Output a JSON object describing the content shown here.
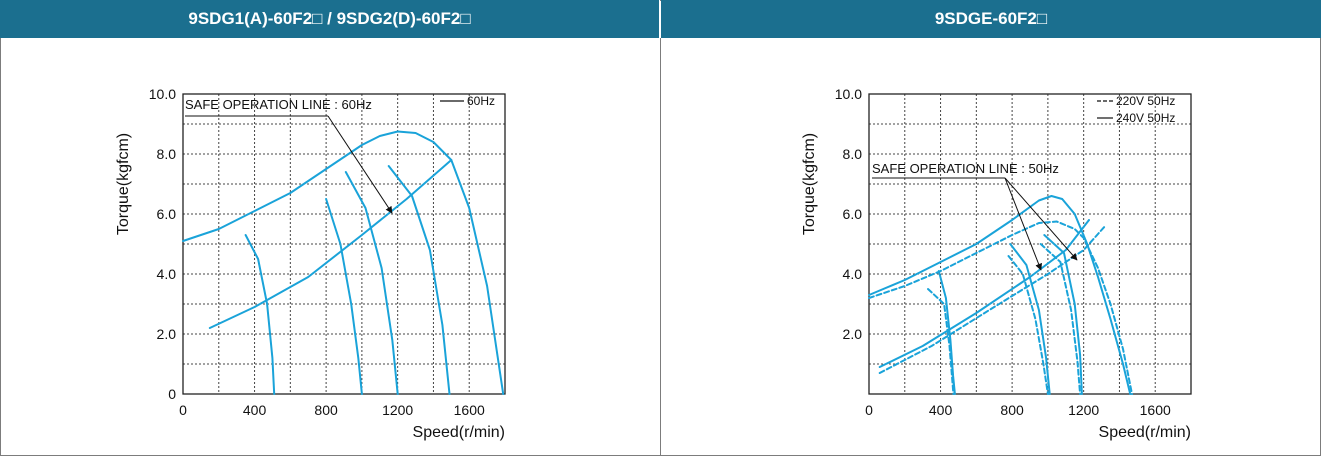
{
  "headers": {
    "left": "9SDG1(A)-60F2□ / 9SDG2(D)-60F2□",
    "right": "9SDGE-60F2□"
  },
  "colors": {
    "header_bg": "#1b6f8f",
    "curve": "#1aa3d9",
    "grid": "#444444"
  },
  "chart_data": [
    {
      "type": "line",
      "title": "9SDG1(A)-60F2□ / 9SDG2(D)-60F2□",
      "xlabel": "Speed(r/min)",
      "ylabel": "Torque(kgfcm)",
      "xlim": [
        0,
        1800
      ],
      "ylim": [
        0,
        10
      ],
      "xticks": [
        "0",
        "400",
        "800",
        "1200",
        "1600"
      ],
      "yticks": [
        "0",
        "2.0",
        "4.0",
        "6.0",
        "8.0",
        "10.0"
      ],
      "grid": true,
      "legend": [
        {
          "label": "60Hz",
          "style": "solid"
        }
      ],
      "annotation": "SAFE OPERATION LINE : 60Hz",
      "series": [
        {
          "style": "solid",
          "x": [
            0,
            200,
            400,
            600,
            800,
            1000,
            1100,
            1200,
            1300,
            1400,
            1500,
            1600,
            1700,
            1790
          ],
          "y": [
            5.1,
            5.5,
            6.1,
            6.7,
            7.5,
            8.3,
            8.6,
            8.75,
            8.7,
            8.4,
            7.8,
            6.2,
            3.6,
            0
          ]
        },
        {
          "style": "solid",
          "x": [
            350,
            420,
            470,
            500,
            510
          ],
          "y": [
            5.3,
            4.5,
            3.0,
            1.2,
            0
          ]
        },
        {
          "style": "solid",
          "x": [
            800,
            880,
            940,
            980,
            1000
          ],
          "y": [
            6.5,
            5.0,
            3.0,
            1.2,
            0
          ]
        },
        {
          "style": "solid",
          "x": [
            910,
            1020,
            1110,
            1170,
            1200
          ],
          "y": [
            7.4,
            6.2,
            4.2,
            1.8,
            0
          ]
        },
        {
          "style": "solid",
          "x": [
            1150,
            1280,
            1380,
            1450,
            1490
          ],
          "y": [
            7.6,
            6.6,
            4.8,
            2.3,
            0
          ]
        },
        {
          "style": "solid",
          "x": [
            150,
            400,
            700,
            1000,
            1250,
            1500
          ],
          "y": [
            2.2,
            2.9,
            3.9,
            5.3,
            6.5,
            7.8
          ]
        }
      ]
    },
    {
      "type": "line",
      "title": "9SDGE-60F2□",
      "xlabel": "Speed(r/min)",
      "ylabel": "Torque(kgfcm)",
      "xlim": [
        0,
        1800
      ],
      "ylim": [
        0,
        10
      ],
      "xticks": [
        "0",
        "400",
        "800",
        "1200",
        "1600"
      ],
      "yticks": [
        "2.0",
        "4.0",
        "6.0",
        "8.0",
        "10.0"
      ],
      "grid": true,
      "legend": [
        {
          "label": "220V 50Hz",
          "style": "dashed"
        },
        {
          "label": "240V 50Hz",
          "style": "solid"
        }
      ],
      "annotation": "SAFE OPERATION LINE : 50Hz",
      "series": [
        {
          "style": "solid",
          "x": [
            0,
            200,
            400,
            600,
            800,
            950,
            1020,
            1080,
            1150,
            1220,
            1280,
            1350,
            1420,
            1460
          ],
          "y": [
            3.3,
            3.8,
            4.4,
            5.0,
            5.8,
            6.45,
            6.6,
            6.5,
            6.0,
            5.0,
            3.9,
            2.5,
            1.0,
            0
          ]
        },
        {
          "style": "dashed",
          "x": [
            0,
            200,
            400,
            600,
            800,
            950,
            1050,
            1150,
            1200,
            1280,
            1350,
            1420,
            1470
          ],
          "y": [
            3.2,
            3.6,
            4.1,
            4.7,
            5.3,
            5.7,
            5.75,
            5.5,
            5.2,
            4.2,
            3.0,
            1.5,
            0
          ]
        },
        {
          "style": "solid",
          "x": [
            390,
            430,
            455,
            470,
            480
          ],
          "y": [
            4.1,
            3.2,
            1.8,
            0.6,
            0
          ]
        },
        {
          "style": "dashed",
          "x": [
            330,
            420,
            450,
            465,
            472
          ],
          "y": [
            3.5,
            3.0,
            1.6,
            0.5,
            0
          ]
        },
        {
          "style": "solid",
          "x": [
            790,
            880,
            950,
            990,
            1010
          ],
          "y": [
            5.0,
            4.3,
            2.8,
            1.2,
            0
          ]
        },
        {
          "style": "dashed",
          "x": [
            780,
            860,
            930,
            975,
            1000
          ],
          "y": [
            4.6,
            4.0,
            2.5,
            1.0,
            0
          ]
        },
        {
          "style": "solid",
          "x": [
            980,
            1090,
            1150,
            1180,
            1190
          ],
          "y": [
            5.3,
            4.7,
            3.0,
            1.3,
            0
          ]
        },
        {
          "style": "dashed",
          "x": [
            960,
            1070,
            1130,
            1165,
            1180
          ],
          "y": [
            5.0,
            4.4,
            2.8,
            1.1,
            0
          ]
        },
        {
          "style": "solid",
          "x": [
            60,
            300,
            600,
            900,
            1100,
            1230
          ],
          "y": [
            0.9,
            1.6,
            2.7,
            3.9,
            4.8,
            5.8
          ]
        },
        {
          "style": "dashed",
          "x": [
            60,
            350,
            700,
            1000,
            1200,
            1320
          ],
          "y": [
            0.7,
            1.6,
            2.9,
            4.0,
            4.8,
            5.6
          ]
        }
      ]
    }
  ]
}
